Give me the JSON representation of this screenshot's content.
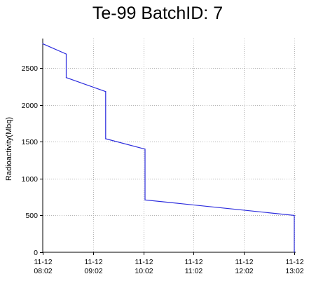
{
  "chart_data": {
    "type": "line",
    "title": "Te-99  BatchID: 7",
    "xlabel": "",
    "ylabel": "Radioactivity(Mbq)",
    "ylim": [
      0,
      2900
    ],
    "xlim": [
      "11-12 08:02",
      "11-12 13:02"
    ],
    "yticks": [
      0,
      500,
      1000,
      1500,
      2000,
      2500
    ],
    "xticks": [
      {
        "value": "11-12 08:02",
        "line1": "11-12",
        "line2": "08:02"
      },
      {
        "value": "11-12 09:02",
        "line1": "11-12",
        "line2": "09:02"
      },
      {
        "value": "11-12 10:02",
        "line1": "11-12",
        "line2": "10:02"
      },
      {
        "value": "11-12 11:02",
        "line1": "11-12",
        "line2": "11:02"
      },
      {
        "value": "11-12 12:02",
        "line1": "11-12",
        "line2": "12:02"
      },
      {
        "value": "11-12 13:02",
        "line1": "11-12",
        "line2": "13:02"
      }
    ],
    "grid": true,
    "line_color": "#2b2bdd",
    "series": [
      {
        "points": [
          {
            "x": "11-12 08:02",
            "y": 2830
          },
          {
            "x": "11-12 08:30",
            "y": 2690
          },
          {
            "x": "11-12 08:30",
            "y": 2370
          },
          {
            "x": "11-12 09:17",
            "y": 2180
          },
          {
            "x": "11-12 09:17",
            "y": 1540
          },
          {
            "x": "11-12 10:04",
            "y": 1400
          },
          {
            "x": "11-12 10:04",
            "y": 710
          },
          {
            "x": "11-12 13:02",
            "y": 500
          },
          {
            "x": "11-12 13:02",
            "y": 0
          }
        ]
      }
    ]
  }
}
